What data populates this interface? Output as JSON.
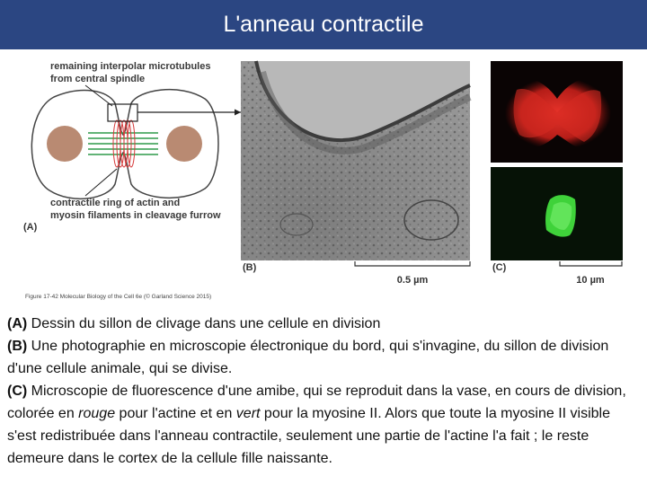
{
  "header": {
    "title": "L'anneau contractile"
  },
  "figure": {
    "panel_a": {
      "label": "(A)",
      "top_note": [
        "remaining interpolar microtubules",
        "from central spindle"
      ],
      "bottom_note": [
        "contractile ring of actin and",
        "myosin filaments in cleavage furrow"
      ]
    },
    "panel_b": {
      "label": "(B)",
      "scale": "0.5 µm"
    },
    "panel_c": {
      "label": "(C)",
      "scale": "10 µm"
    },
    "credit": "Figure 17-42 Molecular Biology of the Cell 6e (© Garland Science 2015)"
  },
  "caption": {
    "paragraphs": [
      {
        "segments": [
          {
            "text": "(A)",
            "style": "bold"
          },
          {
            "text": " Dessin du sillon de clivage dans une cellule en division"
          }
        ]
      },
      {
        "segments": [
          {
            "text": "(B)",
            "style": "bold"
          },
          {
            "text": " Une photographie en microscopie électronique du bord, qui s'invagine, du sillon de division d'une cellule animale, qui se divise."
          }
        ]
      },
      {
        "segments": [
          {
            "text": "(C)",
            "style": "bold"
          },
          {
            "text": " Microscopie de fluorescence d'une amibe, qui se reproduit dans la vase, en cours de division, colorée en "
          },
          {
            "text": "rouge",
            "style": "italic"
          },
          {
            "text": " pour l'actine et en "
          },
          {
            "text": "vert",
            "style": "italic"
          },
          {
            "text": " pour la myosine II. Alors que toute la myosine II visible s'est redistribuée dans l'anneau contractile, seulement une partie de l'actine l'a fait ; le reste demeure dans le cortex de la cellule fille naissante."
          }
        ]
      }
    ]
  }
}
